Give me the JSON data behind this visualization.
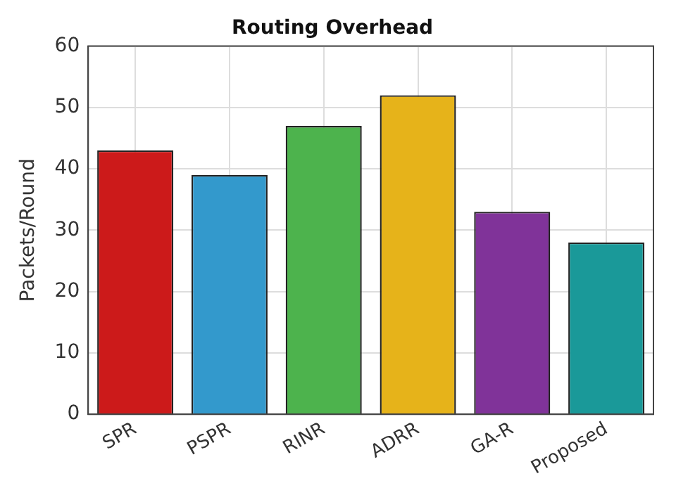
{
  "chart_data": {
    "type": "bar",
    "title": "Routing Overhead",
    "ylabel": "Packets/Round",
    "categories": [
      "SPR",
      "PSPR",
      "RINR",
      "ADRR",
      "GA-R",
      "Proposed"
    ],
    "values": [
      43,
      39,
      47,
      52,
      33,
      28
    ],
    "colors": [
      "#cc1a1a",
      "#3399cc",
      "#4db34d",
      "#e6b31a",
      "#803399",
      "#1a9999"
    ],
    "ylim": [
      0,
      60
    ],
    "yticks": [
      0,
      10,
      20,
      30,
      40,
      50,
      60
    ],
    "grid": true
  }
}
